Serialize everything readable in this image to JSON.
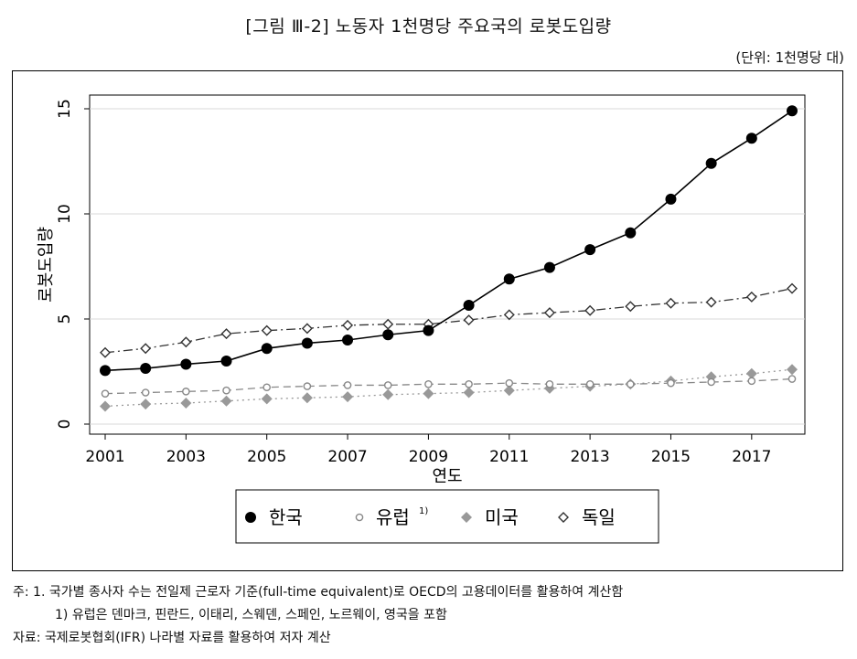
{
  "figure": {
    "title": "[그림 Ⅲ-2] 노동자 1천명당 주요국의 로봇도입량",
    "unit": "(단위: 1천명당 대)"
  },
  "chart_data": {
    "type": "line",
    "xlabel": "연도",
    "ylabel": "로봇도입량",
    "xlim": [
      2001,
      2018
    ],
    "ylim": [
      0,
      15
    ],
    "xticks": [
      "2001",
      "2003",
      "2005",
      "2007",
      "2009",
      "2011",
      "2013",
      "2015",
      "2017"
    ],
    "yticks": [
      "0",
      "5",
      "10",
      "15"
    ],
    "x": [
      2001,
      2002,
      2003,
      2004,
      2005,
      2006,
      2007,
      2008,
      2009,
      2010,
      2011,
      2012,
      2013,
      2014,
      2015,
      2016,
      2017,
      2018
    ],
    "series": [
      {
        "name": "한국",
        "marker": "filled-circle",
        "line": "solid",
        "color": "#000000",
        "values": [
          2.55,
          2.65,
          2.85,
          3.0,
          3.6,
          3.85,
          4.0,
          4.25,
          4.45,
          5.65,
          6.9,
          7.45,
          8.3,
          9.1,
          10.7,
          12.4,
          13.6,
          14.9
        ]
      },
      {
        "name": "유럽",
        "sup": "1)",
        "marker": "hollow-circle",
        "line": "dashed",
        "color": "#888888",
        "values": [
          1.45,
          1.5,
          1.55,
          1.6,
          1.75,
          1.8,
          1.85,
          1.85,
          1.9,
          1.9,
          1.95,
          1.9,
          1.9,
          1.9,
          1.95,
          2.0,
          2.05,
          2.15
        ]
      },
      {
        "name": "미국",
        "marker": "filled-diamond",
        "line": "dotted",
        "color": "#999999",
        "values": [
          0.85,
          0.95,
          1.0,
          1.1,
          1.2,
          1.25,
          1.3,
          1.4,
          1.45,
          1.5,
          1.6,
          1.7,
          1.8,
          1.9,
          2.05,
          2.25,
          2.4,
          2.6
        ]
      },
      {
        "name": "독일",
        "marker": "hollow-diamond",
        "line": "dashdot",
        "color": "#444444",
        "values": [
          3.4,
          3.6,
          3.9,
          4.3,
          4.45,
          4.55,
          4.7,
          4.75,
          4.75,
          4.95,
          5.2,
          5.3,
          5.4,
          5.6,
          5.75,
          5.8,
          6.05,
          6.45
        ]
      }
    ],
    "legend": "bottom-center"
  },
  "notes": {
    "note1": "주:  1. 국가별 종사자 수는 전일제 근로자 기준(full-time equivalent)로 OECD의 고용데이터를 활용하여 계산함",
    "note2_prefix": "1) 유럽은 덴마크, 핀란드, 이태리, 스웨덴, 스페인, 노르웨이, 영국을 포함",
    "source": "자료: 국제로봇협회(IFR) 나라별 자료를 활용하여 저자 계산"
  }
}
